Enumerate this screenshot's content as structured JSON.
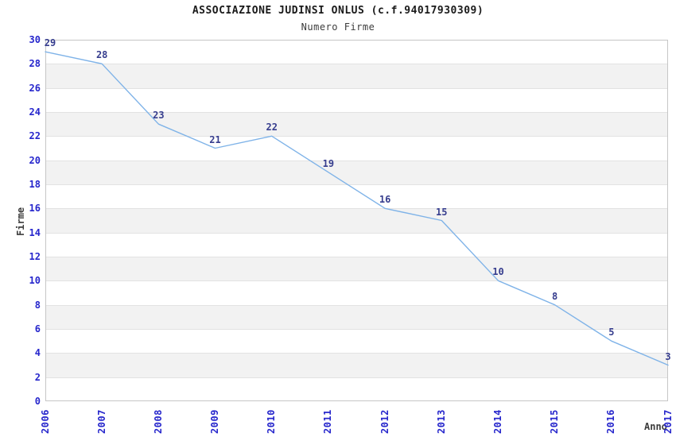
{
  "header": {
    "title": "ASSOCIAZIONE JUDINSI ONLUS (c.f.94017930309)",
    "subtitle": "Numero Firme"
  },
  "chart_data": {
    "type": "line",
    "title": "ASSOCIAZIONE JUDINSI ONLUS (c.f.94017930309)",
    "subtitle": "Numero Firme",
    "xlabel": "Anno",
    "ylabel": "Firme",
    "categories": [
      "2006",
      "2007",
      "2008",
      "2009",
      "2010",
      "2011",
      "2012",
      "2013",
      "2014",
      "2015",
      "2016",
      "2017"
    ],
    "values": [
      29,
      28,
      23,
      21,
      22,
      19,
      16,
      15,
      10,
      8,
      5,
      3
    ],
    "ylim": [
      0,
      30
    ],
    "ytick_step": 2,
    "grid": true,
    "legend": "none",
    "point_labels_visible": true,
    "colors": {
      "line": "#7fb3e8",
      "tick_label": "#2626cc",
      "point_label": "#363d8e",
      "band_even": "#ffffff",
      "band_odd": "#f2f2f2",
      "gridline": "#e2e2e2",
      "plot_border": "#c6c6c6",
      "title": "#1a1a1a",
      "axis_title": "#3c3c3c"
    }
  }
}
